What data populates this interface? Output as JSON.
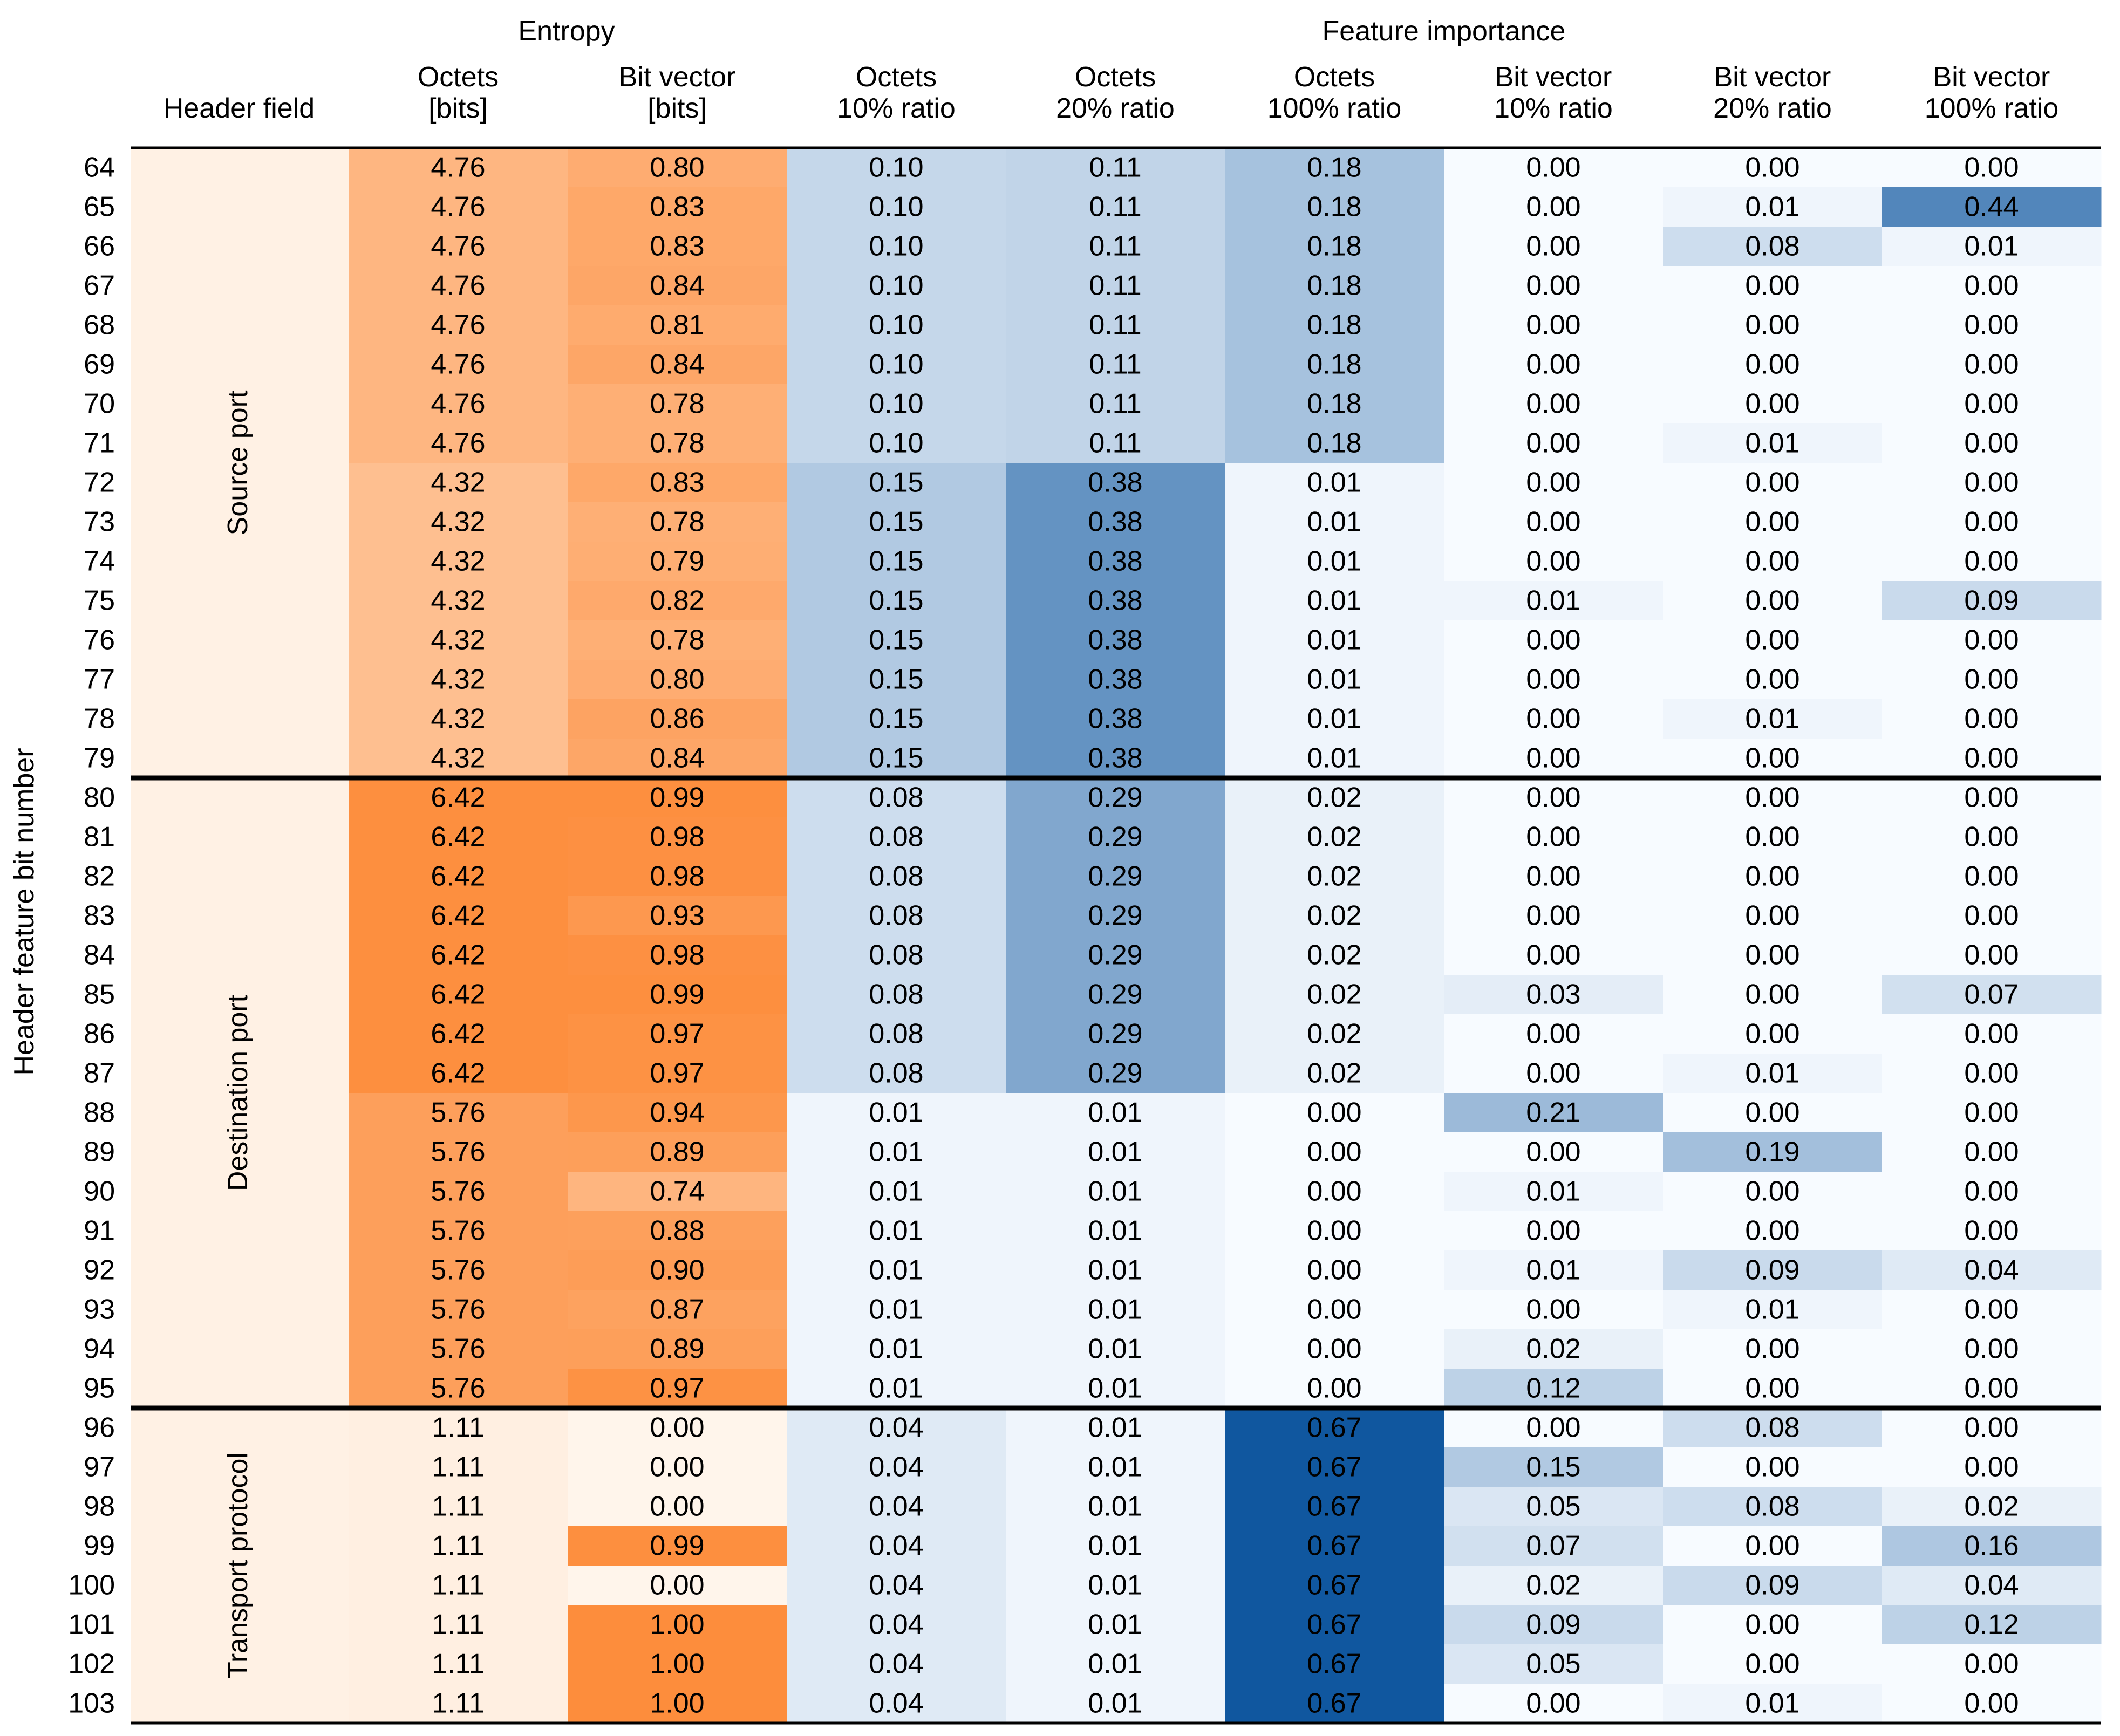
{
  "chart_data": {
    "type": "heatmap",
    "y_axis_label": "Header feature bit number",
    "group_headers": [
      {
        "label": "Entropy",
        "columns": [
          "oct_entropy",
          "bv_entropy"
        ]
      },
      {
        "label": "Feature importance",
        "columns": [
          "oct10",
          "oct20",
          "oct100",
          "bv10",
          "bv20",
          "bv100"
        ]
      }
    ],
    "field_column_header": "Header field",
    "columns": [
      {
        "key": "oct_entropy",
        "line1": "Octets",
        "line2": "[bits]",
        "colormap": "orange",
        "vmax": 6.5
      },
      {
        "key": "bv_entropy",
        "line1": "Bit vector",
        "line2": "[bits]",
        "colormap": "orange",
        "vmax": 1.0
      },
      {
        "key": "oct10",
        "line1": "Octets",
        "line2": "10% ratio",
        "colormap": "blue",
        "vmax": 0.7
      },
      {
        "key": "oct20",
        "line1": "Octets",
        "line2": "20% ratio",
        "colormap": "blue",
        "vmax": 0.7
      },
      {
        "key": "oct100",
        "line1": "Octets",
        "line2": "100% ratio",
        "colormap": "blue",
        "vmax": 0.7
      },
      {
        "key": "bv10",
        "line1": "Bit vector",
        "line2": "10% ratio",
        "colormap": "blue",
        "vmax": 0.7
      },
      {
        "key": "bv20",
        "line1": "Bit vector",
        "line2": "20% ratio",
        "colormap": "blue",
        "vmax": 0.7
      },
      {
        "key": "bv100",
        "line1": "Bit vector",
        "line2": "100% ratio",
        "colormap": "blue",
        "vmax": 0.7
      }
    ],
    "header_fields": [
      {
        "label": "Source port",
        "rows": [
          64,
          79
        ]
      },
      {
        "label": "Destination port",
        "rows": [
          80,
          95
        ]
      },
      {
        "label": "Transport protocol",
        "rows": [
          96,
          103
        ]
      }
    ],
    "row_labels": [
      "64",
      "65",
      "66",
      "67",
      "68",
      "69",
      "70",
      "71",
      "72",
      "73",
      "74",
      "75",
      "76",
      "77",
      "78",
      "79",
      "80",
      "81",
      "82",
      "83",
      "84",
      "85",
      "86",
      "87",
      "88",
      "89",
      "90",
      "91",
      "92",
      "93",
      "94",
      "95",
      "96",
      "97",
      "98",
      "99",
      "100",
      "101",
      "102",
      "103"
    ],
    "values": [
      [
        "4.76",
        "0.80",
        "0.10",
        "0.11",
        "0.18",
        "0.00",
        "0.00",
        "0.00"
      ],
      [
        "4.76",
        "0.83",
        "0.10",
        "0.11",
        "0.18",
        "0.00",
        "0.01",
        "0.44"
      ],
      [
        "4.76",
        "0.83",
        "0.10",
        "0.11",
        "0.18",
        "0.00",
        "0.08",
        "0.01"
      ],
      [
        "4.76",
        "0.84",
        "0.10",
        "0.11",
        "0.18",
        "0.00",
        "0.00",
        "0.00"
      ],
      [
        "4.76",
        "0.81",
        "0.10",
        "0.11",
        "0.18",
        "0.00",
        "0.00",
        "0.00"
      ],
      [
        "4.76",
        "0.84",
        "0.10",
        "0.11",
        "0.18",
        "0.00",
        "0.00",
        "0.00"
      ],
      [
        "4.76",
        "0.78",
        "0.10",
        "0.11",
        "0.18",
        "0.00",
        "0.00",
        "0.00"
      ],
      [
        "4.76",
        "0.78",
        "0.10",
        "0.11",
        "0.18",
        "0.00",
        "0.01",
        "0.00"
      ],
      [
        "4.32",
        "0.83",
        "0.15",
        "0.38",
        "0.01",
        "0.00",
        "0.00",
        "0.00"
      ],
      [
        "4.32",
        "0.78",
        "0.15",
        "0.38",
        "0.01",
        "0.00",
        "0.00",
        "0.00"
      ],
      [
        "4.32",
        "0.79",
        "0.15",
        "0.38",
        "0.01",
        "0.00",
        "0.00",
        "0.00"
      ],
      [
        "4.32",
        "0.82",
        "0.15",
        "0.38",
        "0.01",
        "0.01",
        "0.00",
        "0.09"
      ],
      [
        "4.32",
        "0.78",
        "0.15",
        "0.38",
        "0.01",
        "0.00",
        "0.00",
        "0.00"
      ],
      [
        "4.32",
        "0.80",
        "0.15",
        "0.38",
        "0.01",
        "0.00",
        "0.00",
        "0.00"
      ],
      [
        "4.32",
        "0.86",
        "0.15",
        "0.38",
        "0.01",
        "0.00",
        "0.01",
        "0.00"
      ],
      [
        "4.32",
        "0.84",
        "0.15",
        "0.38",
        "0.01",
        "0.00",
        "0.00",
        "0.00"
      ],
      [
        "6.42",
        "0.99",
        "0.08",
        "0.29",
        "0.02",
        "0.00",
        "0.00",
        "0.00"
      ],
      [
        "6.42",
        "0.98",
        "0.08",
        "0.29",
        "0.02",
        "0.00",
        "0.00",
        "0.00"
      ],
      [
        "6.42",
        "0.98",
        "0.08",
        "0.29",
        "0.02",
        "0.00",
        "0.00",
        "0.00"
      ],
      [
        "6.42",
        "0.93",
        "0.08",
        "0.29",
        "0.02",
        "0.00",
        "0.00",
        "0.00"
      ],
      [
        "6.42",
        "0.98",
        "0.08",
        "0.29",
        "0.02",
        "0.00",
        "0.00",
        "0.00"
      ],
      [
        "6.42",
        "0.99",
        "0.08",
        "0.29",
        "0.02",
        "0.03",
        "0.00",
        "0.07"
      ],
      [
        "6.42",
        "0.97",
        "0.08",
        "0.29",
        "0.02",
        "0.00",
        "0.00",
        "0.00"
      ],
      [
        "6.42",
        "0.97",
        "0.08",
        "0.29",
        "0.02",
        "0.00",
        "0.01",
        "0.00"
      ],
      [
        "5.76",
        "0.94",
        "0.01",
        "0.01",
        "0.00",
        "0.21",
        "0.00",
        "0.00"
      ],
      [
        "5.76",
        "0.89",
        "0.01",
        "0.01",
        "0.00",
        "0.00",
        "0.19",
        "0.00"
      ],
      [
        "5.76",
        "0.74",
        "0.01",
        "0.01",
        "0.00",
        "0.01",
        "0.00",
        "0.00"
      ],
      [
        "5.76",
        "0.88",
        "0.01",
        "0.01",
        "0.00",
        "0.00",
        "0.00",
        "0.00"
      ],
      [
        "5.76",
        "0.90",
        "0.01",
        "0.01",
        "0.00",
        "0.01",
        "0.09",
        "0.04"
      ],
      [
        "5.76",
        "0.87",
        "0.01",
        "0.01",
        "0.00",
        "0.00",
        "0.01",
        "0.00"
      ],
      [
        "5.76",
        "0.89",
        "0.01",
        "0.01",
        "0.00",
        "0.02",
        "0.00",
        "0.00"
      ],
      [
        "5.76",
        "0.97",
        "0.01",
        "0.01",
        "0.00",
        "0.12",
        "0.00",
        "0.00"
      ],
      [
        "1.11",
        "0.00",
        "0.04",
        "0.01",
        "0.67",
        "0.00",
        "0.08",
        "0.00"
      ],
      [
        "1.11",
        "0.00",
        "0.04",
        "0.01",
        "0.67",
        "0.15",
        "0.00",
        "0.00"
      ],
      [
        "1.11",
        "0.00",
        "0.04",
        "0.01",
        "0.67",
        "0.05",
        "0.08",
        "0.02"
      ],
      [
        "1.11",
        "0.99",
        "0.04",
        "0.01",
        "0.67",
        "0.07",
        "0.00",
        "0.16"
      ],
      [
        "1.11",
        "0.00",
        "0.04",
        "0.01",
        "0.67",
        "0.02",
        "0.09",
        "0.04"
      ],
      [
        "1.11",
        "1.00",
        "0.04",
        "0.01",
        "0.67",
        "0.09",
        "0.00",
        "0.12"
      ],
      [
        "1.11",
        "1.00",
        "0.04",
        "0.01",
        "0.67",
        "0.05",
        "0.00",
        "0.00"
      ],
      [
        "1.11",
        "1.00",
        "0.04",
        "0.01",
        "0.67",
        "0.00",
        "0.01",
        "0.00"
      ]
    ],
    "colors": {
      "orange_low": "#fff5eb",
      "orange_high": "#fd8d3c",
      "blue_low": "#f7fbff",
      "blue_high": "#08519c",
      "field_band": "#fff1e4"
    }
  }
}
